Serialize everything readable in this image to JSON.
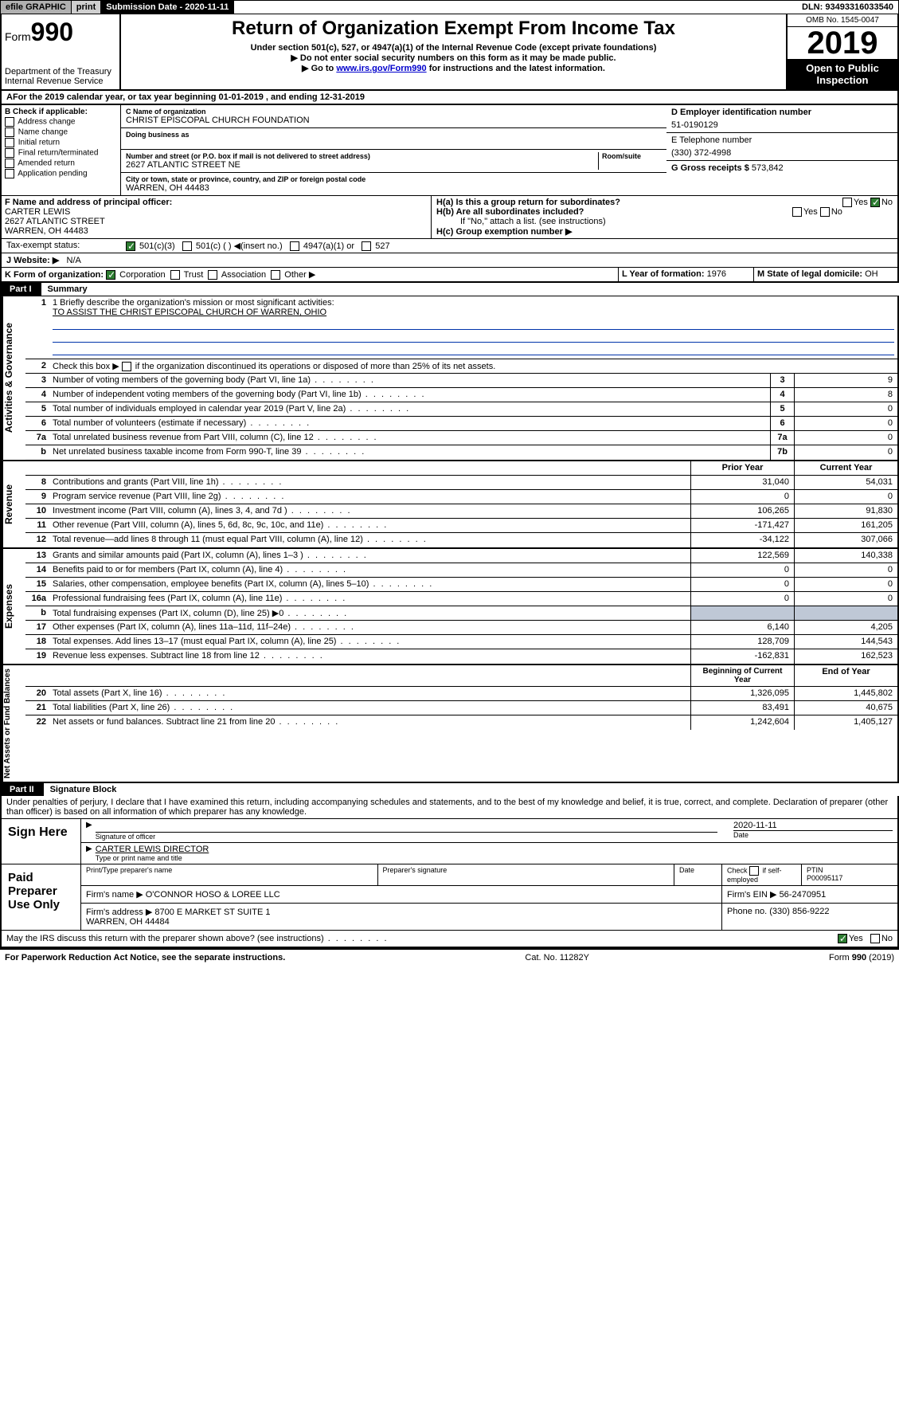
{
  "top": {
    "efile": "efile GRAPHIC",
    "print": "print",
    "submission": "Submission Date - 2020-11-11",
    "dln": "DLN: 93493316033540"
  },
  "header": {
    "form_prefix": "Form",
    "form_num": "990",
    "dept": "Department of the Treasury\nInternal Revenue Service",
    "title": "Return of Organization Exempt From Income Tax",
    "sub1": "Under section 501(c), 527, or 4947(a)(1) of the Internal Revenue Code (except private foundations)",
    "sub2": "▶ Do not enter social security numbers on this form as it may be made public.",
    "sub3_pre": "▶ Go to ",
    "sub3_link": "www.irs.gov/Form990",
    "sub3_post": " for instructions and the latest information.",
    "omb": "OMB No. 1545-0047",
    "year": "2019",
    "open": "Open to Public Inspection"
  },
  "A": "For the 2019 calendar year, or tax year beginning 01-01-2019     , and ending 12-31-2019",
  "B": {
    "lbl": "B Check if applicable:",
    "opts": [
      "Address change",
      "Name change",
      "Initial return",
      "Final return/terminated",
      "Amended return",
      "Application pending"
    ]
  },
  "C": {
    "name_lbl": "C Name of organization",
    "name": "CHRIST EPISCOPAL CHURCH FOUNDATION",
    "dba_lbl": "Doing business as",
    "addr_lbl": "Number and street (or P.O. box if mail is not delivered to street address)",
    "room_lbl": "Room/suite",
    "addr": "2627 ATLANTIC STREET NE",
    "city_lbl": "City or town, state or province, country, and ZIP or foreign postal code",
    "city": "WARREN, OH  44483"
  },
  "D": {
    "lbl": "D Employer identification number",
    "val": "51-0190129"
  },
  "E": {
    "lbl": "E Telephone number",
    "val": "(330) 372-4998"
  },
  "G": {
    "lbl": "G Gross receipts $",
    "val": "573,842"
  },
  "F": {
    "lbl": "F  Name and address of principal officer:",
    "name": "CARTER LEWIS",
    "addr": "2627 ATLANTIC STREET\nWARREN, OH  44483"
  },
  "H": {
    "a": "H(a)  Is this a group return for subordinates?",
    "b": "H(b)  Are all subordinates included?",
    "b_note": "If \"No,\" attach a list. (see instructions)",
    "c": "H(c)  Group exemption number ▶"
  },
  "yes": "Yes",
  "no": "No",
  "tax_status": "Tax-exempt status:",
  "tax_opts": [
    "501(c)(3)",
    "501(c) (   ) ◀(insert no.)",
    "4947(a)(1) or",
    "527"
  ],
  "J": {
    "lbl": "J  Website: ▶",
    "val": "N/A"
  },
  "K": "K Form of organization:",
  "K_opts": [
    "Corporation",
    "Trust",
    "Association",
    "Other ▶"
  ],
  "L": {
    "lbl": "L Year of formation:",
    "val": "1976"
  },
  "M": {
    "lbl": "M State of legal domicile:",
    "val": "OH"
  },
  "part1": {
    "lbl": "Part I",
    "title": "Summary"
  },
  "s1": {
    "l1_lbl": "1  Briefly describe the organization's mission or most significant activities:",
    "l1_val": "TO ASSIST THE CHRIST EPISCOPAL CHURCH OF WARREN, OHIO",
    "l2": "Check this box ▶        if the organization discontinued its operations or disposed of more than 25% of its net assets.",
    "rows_a": [
      {
        "n": "3",
        "d": "Number of voting members of the governing body (Part VI, line 1a)",
        "b": "3",
        "v": "9"
      },
      {
        "n": "4",
        "d": "Number of independent voting members of the governing body (Part VI, line 1b)",
        "b": "4",
        "v": "8"
      },
      {
        "n": "5",
        "d": "Total number of individuals employed in calendar year 2019 (Part V, line 2a)",
        "b": "5",
        "v": "0"
      },
      {
        "n": "6",
        "d": "Total number of volunteers (estimate if necessary)",
        "b": "6",
        "v": "0"
      },
      {
        "n": "7a",
        "d": "Total unrelated business revenue from Part VIII, column (C), line 12",
        "b": "7a",
        "v": "0"
      },
      {
        "n": "b",
        "d": "Net unrelated business taxable income from Form 990-T, line 39",
        "b": "7b",
        "v": "0"
      }
    ],
    "col_prior": "Prior Year",
    "col_curr": "Current Year",
    "rev": [
      {
        "n": "8",
        "d": "Contributions and grants (Part VIII, line 1h)",
        "p": "31,040",
        "c": "54,031"
      },
      {
        "n": "9",
        "d": "Program service revenue (Part VIII, line 2g)",
        "p": "0",
        "c": "0"
      },
      {
        "n": "10",
        "d": "Investment income (Part VIII, column (A), lines 3, 4, and 7d )",
        "p": "106,265",
        "c": "91,830"
      },
      {
        "n": "11",
        "d": "Other revenue (Part VIII, column (A), lines 5, 6d, 8c, 9c, 10c, and 11e)",
        "p": "-171,427",
        "c": "161,205"
      },
      {
        "n": "12",
        "d": "Total revenue—add lines 8 through 11 (must equal Part VIII, column (A), line 12)",
        "p": "-34,122",
        "c": "307,066"
      }
    ],
    "exp": [
      {
        "n": "13",
        "d": "Grants and similar amounts paid (Part IX, column (A), lines 1–3 )",
        "p": "122,569",
        "c": "140,338"
      },
      {
        "n": "14",
        "d": "Benefits paid to or for members (Part IX, column (A), line 4)",
        "p": "0",
        "c": "0"
      },
      {
        "n": "15",
        "d": "Salaries, other compensation, employee benefits (Part IX, column (A), lines 5–10)",
        "p": "0",
        "c": "0"
      },
      {
        "n": "16a",
        "d": "Professional fundraising fees (Part IX, column (A), line 11e)",
        "p": "0",
        "c": "0"
      },
      {
        "n": "b",
        "d": "Total fundraising expenses (Part IX, column (D), line 25) ▶0",
        "p": "",
        "c": "",
        "sh": true
      },
      {
        "n": "17",
        "d": "Other expenses (Part IX, column (A), lines 11a–11d, 11f–24e)",
        "p": "6,140",
        "c": "4,205"
      },
      {
        "n": "18",
        "d": "Total expenses. Add lines 13–17 (must equal Part IX, column (A), line 25)",
        "p": "128,709",
        "c": "144,543"
      },
      {
        "n": "19",
        "d": "Revenue less expenses. Subtract line 18 from line 12",
        "p": "-162,831",
        "c": "162,523"
      }
    ],
    "col_beg": "Beginning of Current Year",
    "col_end": "End of Year",
    "net": [
      {
        "n": "20",
        "d": "Total assets (Part X, line 16)",
        "p": "1,326,095",
        "c": "1,445,802"
      },
      {
        "n": "21",
        "d": "Total liabilities (Part X, line 26)",
        "p": "83,491",
        "c": "40,675"
      },
      {
        "n": "22",
        "d": "Net assets or fund balances. Subtract line 21 from line 20",
        "p": "1,242,604",
        "c": "1,405,127"
      }
    ],
    "side_gov": "Activities & Governance",
    "side_rev": "Revenue",
    "side_exp": "Expenses",
    "side_net": "Net Assets or Fund Balances"
  },
  "part2": {
    "lbl": "Part II",
    "title": "Signature Block"
  },
  "perjury": "Under penalties of perjury, I declare that I have examined this return, including accompanying schedules and statements, and to the best of my knowledge and belief, it is true, correct, and complete. Declaration of preparer (other than officer) is based on all information of which preparer has any knowledge.",
  "sign": {
    "here": "Sign Here",
    "sig_officer": "Signature of officer",
    "date": "Date",
    "date_val": "2020-11-11",
    "name": "CARTER LEWIS  DIRECTOR",
    "name_lbl": "Type or print name and title"
  },
  "paid": {
    "lbl": "Paid Preparer Use Only",
    "c1": "Print/Type preparer's name",
    "c2": "Preparer's signature",
    "c3": "Date",
    "c4a": "Check",
    "c4b": "if self-employed",
    "c5": "PTIN",
    "ptin": "P00095117",
    "firm_name_lbl": "Firm's name    ▶",
    "firm_name": "O'CONNOR HOSO & LOREE LLC",
    "firm_ein_lbl": "Firm's EIN ▶",
    "firm_ein": "56-2470951",
    "firm_addr_lbl": "Firm's address ▶",
    "firm_addr": "8700 E MARKET ST SUITE 1\nWARREN, OH  44484",
    "phone_lbl": "Phone no.",
    "phone": "(330) 856-9222"
  },
  "discuss": "May the IRS discuss this return with the preparer shown above? (see instructions)",
  "footer": {
    "left": "For Paperwork Reduction Act Notice, see the separate instructions.",
    "mid": "Cat. No. 11282Y",
    "right": "Form 990 (2019)"
  }
}
